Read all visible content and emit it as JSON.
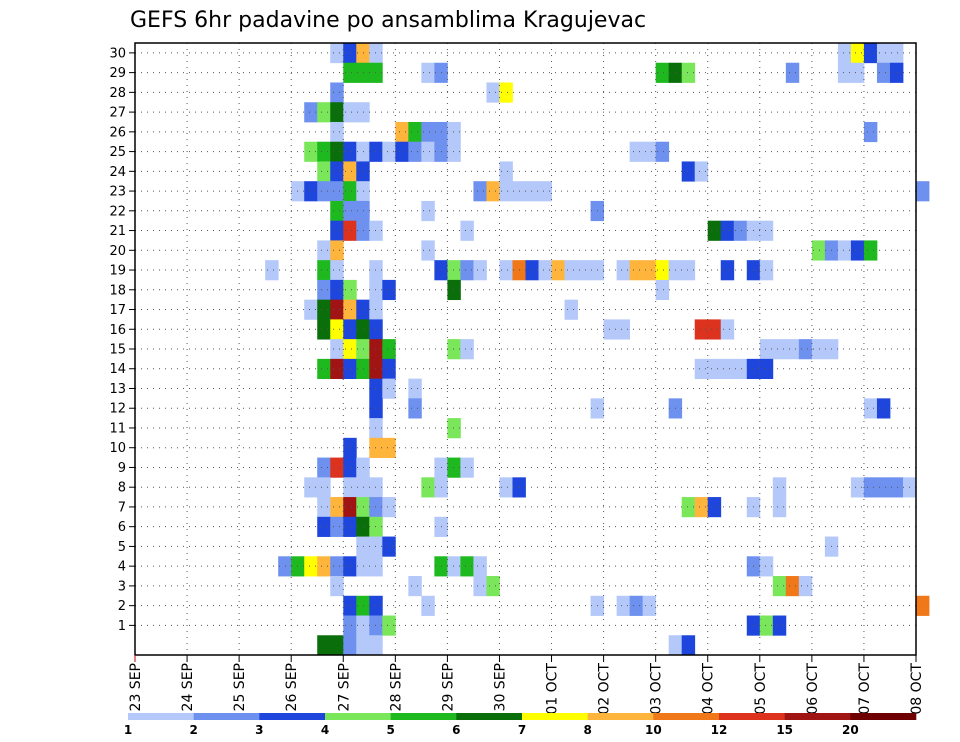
{
  "chart_data": {
    "type": "heatmap",
    "title": "GEFS 6hr padavine po ansamblima Kragujevac",
    "xlabel": "",
    "ylabel": "",
    "x_tick_labels": [
      "23 SEP",
      "24 SEP",
      "25 SEP",
      "26 SEP",
      "27 SEP",
      "28 SEP",
      "29 SEP",
      "30 SEP",
      "01 OCT",
      "02 OCT",
      "03 OCT",
      "04 OCT",
      "05 OCT",
      "06 OCT",
      "07 OCT",
      "08 OCT"
    ],
    "y_tick_labels": [
      "1",
      "2",
      "3",
      "4",
      "5",
      "6",
      "7",
      "8",
      "9",
      "10",
      "11",
      "12",
      "13",
      "14",
      "15",
      "16",
      "17",
      "18",
      "19",
      "20",
      "21",
      "22",
      "23",
      "24",
      "25",
      "26",
      "27",
      "28",
      "29",
      "30"
    ],
    "grid": true,
    "time_steps_per_day": 4,
    "legend": {
      "position": "bottom",
      "levels": [
        "1",
        "2",
        "3",
        "4",
        "5",
        "6",
        "7",
        "8",
        "10",
        "12",
        "15",
        "20"
      ],
      "colors": [
        "#b4c8fa",
        "#6e91f0",
        "#1e46dc",
        "#7ae65a",
        "#1eb91e",
        "#0a6e0a",
        "#ffff00",
        "#ffb43c",
        "#f07818",
        "#dc321e",
        "#a01414",
        "#6e0000"
      ]
    },
    "cells": [
      {
        "member": 30,
        "step": [
          15,
          16,
          17,
          18,
          54,
          55,
          56,
          57,
          58,
          74,
          75,
          108,
          109
        ],
        "class": [
          1,
          3,
          8,
          1,
          1,
          7,
          3,
          1,
          1,
          1,
          1,
          1,
          1
        ]
      },
      {
        "member": 29,
        "step": [
          16,
          17,
          18,
          22,
          23,
          40,
          41,
          42,
          50,
          54,
          55,
          57,
          58
        ],
        "class": [
          5,
          5,
          5,
          1,
          2,
          5,
          6,
          4,
          2,
          1,
          1,
          2,
          3
        ]
      },
      {
        "member": 28,
        "step": [
          15,
          27,
          28
        ],
        "class": [
          2,
          1,
          7
        ]
      },
      {
        "member": 27,
        "step": [
          13,
          14,
          15,
          16,
          17
        ],
        "class": [
          2,
          4,
          6,
          1,
          1
        ]
      },
      {
        "member": 26,
        "step": [
          15,
          20,
          21,
          22,
          23,
          24,
          56
        ],
        "class": [
          1,
          8,
          5,
          2,
          2,
          1,
          2
        ]
      },
      {
        "member": 25,
        "step": [
          13,
          14,
          15,
          16,
          17,
          18,
          19,
          20,
          21,
          22,
          23,
          24,
          38,
          39,
          40
        ],
        "class": [
          4,
          5,
          6,
          3,
          1,
          3,
          1,
          3,
          2,
          1,
          2,
          1,
          1,
          1,
          2
        ]
      },
      {
        "member": 24,
        "step": [
          14,
          15,
          16,
          17,
          28,
          42,
          43
        ],
        "class": [
          4,
          3,
          8,
          3,
          1,
          3,
          1
        ]
      },
      {
        "member": 23,
        "step": [
          12,
          13,
          14,
          15,
          16,
          17,
          26,
          27,
          28,
          29,
          30,
          31,
          60
        ],
        "class": [
          1,
          3,
          2,
          2,
          5,
          1,
          2,
          8,
          1,
          1,
          1,
          1,
          2
        ]
      },
      {
        "member": 22,
        "step": [
          15,
          16,
          17,
          22,
          35
        ],
        "class": [
          5,
          2,
          2,
          1,
          2
        ]
      },
      {
        "member": 21,
        "step": [
          15,
          16,
          17,
          18,
          25,
          44,
          45,
          46,
          47,
          48
        ],
        "class": [
          3,
          10,
          2,
          1,
          1,
          6,
          3,
          2,
          1,
          1
        ]
      },
      {
        "member": 20,
        "step": [
          14,
          15,
          22,
          52,
          53,
          54,
          55,
          56
        ],
        "class": [
          1,
          8,
          1,
          4,
          2,
          1,
          3,
          5
        ]
      },
      {
        "member": 19,
        "step": [
          10,
          14,
          15,
          18,
          23,
          24,
          25,
          26,
          28,
          29,
          30,
          31,
          32,
          33,
          34,
          35,
          37,
          38,
          39,
          40,
          41,
          42,
          45,
          47,
          48
        ],
        "class": [
          1,
          5,
          1,
          1,
          3,
          4,
          2,
          1,
          1,
          9,
          3,
          1,
          8,
          1,
          1,
          1,
          1,
          8,
          8,
          7,
          1,
          1,
          3,
          3,
          1
        ]
      },
      {
        "member": 18,
        "step": [
          14,
          15,
          16,
          18,
          19,
          24,
          40
        ],
        "class": [
          2,
          3,
          4,
          1,
          3,
          6,
          1
        ]
      },
      {
        "member": 17,
        "step": [
          13,
          14,
          15,
          16,
          17,
          18,
          33
        ],
        "class": [
          1,
          6,
          11,
          8,
          3,
          1,
          1
        ]
      },
      {
        "member": 16,
        "step": [
          14,
          15,
          16,
          17,
          18,
          36,
          37,
          43,
          44,
          45
        ],
        "class": [
          6,
          7,
          3,
          6,
          3,
          1,
          1,
          10,
          10,
          1
        ]
      },
      {
        "member": 15,
        "step": [
          15,
          16,
          17,
          18,
          19,
          24,
          25,
          48,
          49,
          50,
          51,
          52,
          53
        ],
        "class": [
          1,
          7,
          4,
          11,
          5,
          4,
          1,
          1,
          1,
          1,
          2,
          1,
          1
        ]
      },
      {
        "member": 14,
        "step": [
          14,
          15,
          16,
          17,
          18,
          19,
          43,
          44,
          45,
          46,
          47,
          48
        ],
        "class": [
          5,
          11,
          3,
          5,
          11,
          3,
          1,
          1,
          1,
          1,
          3,
          3
        ]
      },
      {
        "member": 13,
        "step": [
          18,
          19,
          21
        ],
        "class": [
          3,
          1,
          1
        ]
      },
      {
        "member": 12,
        "step": [
          18,
          21,
          35,
          41,
          56,
          57
        ],
        "class": [
          3,
          2,
          1,
          2,
          1,
          3
        ]
      },
      {
        "member": 11,
        "step": [
          18,
          24
        ],
        "class": [
          1,
          4
        ]
      },
      {
        "member": 10,
        "step": [
          16,
          18,
          19
        ],
        "class": [
          3,
          8,
          8
        ]
      },
      {
        "member": 9,
        "step": [
          14,
          15,
          16,
          17,
          23,
          24,
          25
        ],
        "class": [
          2,
          10,
          3,
          1,
          1,
          5,
          1
        ]
      },
      {
        "member": 8,
        "step": [
          13,
          14,
          16,
          17,
          18,
          22,
          23,
          28,
          29,
          49,
          55,
          56,
          57,
          58,
          59
        ],
        "class": [
          1,
          1,
          1,
          1,
          1,
          4,
          1,
          1,
          3,
          1,
          1,
          2,
          2,
          2,
          1
        ]
      },
      {
        "member": 7,
        "step": [
          14,
          15,
          16,
          17,
          18,
          19,
          42,
          43,
          44,
          47,
          49
        ],
        "class": [
          1,
          8,
          11,
          4,
          2,
          1,
          4,
          8,
          3,
          1,
          1
        ]
      },
      {
        "member": 6,
        "step": [
          14,
          15,
          16,
          17,
          18,
          23
        ],
        "class": [
          3,
          2,
          3,
          6,
          4,
          1
        ]
      },
      {
        "member": 5,
        "step": [
          17,
          18,
          19,
          53
        ],
        "class": [
          1,
          1,
          3,
          1
        ]
      },
      {
        "member": 4,
        "step": [
          11,
          12,
          13,
          14,
          15,
          16,
          17,
          18,
          23,
          24,
          25,
          26,
          47,
          48
        ],
        "class": [
          2,
          5,
          7,
          8,
          2,
          3,
          1,
          1,
          5,
          1,
          5,
          1,
          2,
          1
        ]
      },
      {
        "member": 3,
        "step": [
          15,
          21,
          26,
          27,
          49,
          50,
          51
        ],
        "class": [
          1,
          1,
          1,
          4,
          4,
          9,
          1
        ]
      },
      {
        "member": 2,
        "step": [
          16,
          17,
          18,
          22,
          35,
          37,
          38,
          39,
          60
        ],
        "class": [
          3,
          5,
          3,
          1,
          1,
          1,
          2,
          1,
          9
        ]
      },
      {
        "member": 1,
        "step": [
          16,
          17,
          18,
          19,
          47,
          48,
          49
        ],
        "class": [
          2,
          1,
          2,
          4,
          3,
          4,
          3
        ]
      },
      {
        "member": 0,
        "step": [
          14,
          15,
          16,
          17,
          18,
          41,
          42
        ],
        "class": [
          6,
          6,
          2,
          1,
          1,
          1,
          3
        ]
      }
    ]
  }
}
